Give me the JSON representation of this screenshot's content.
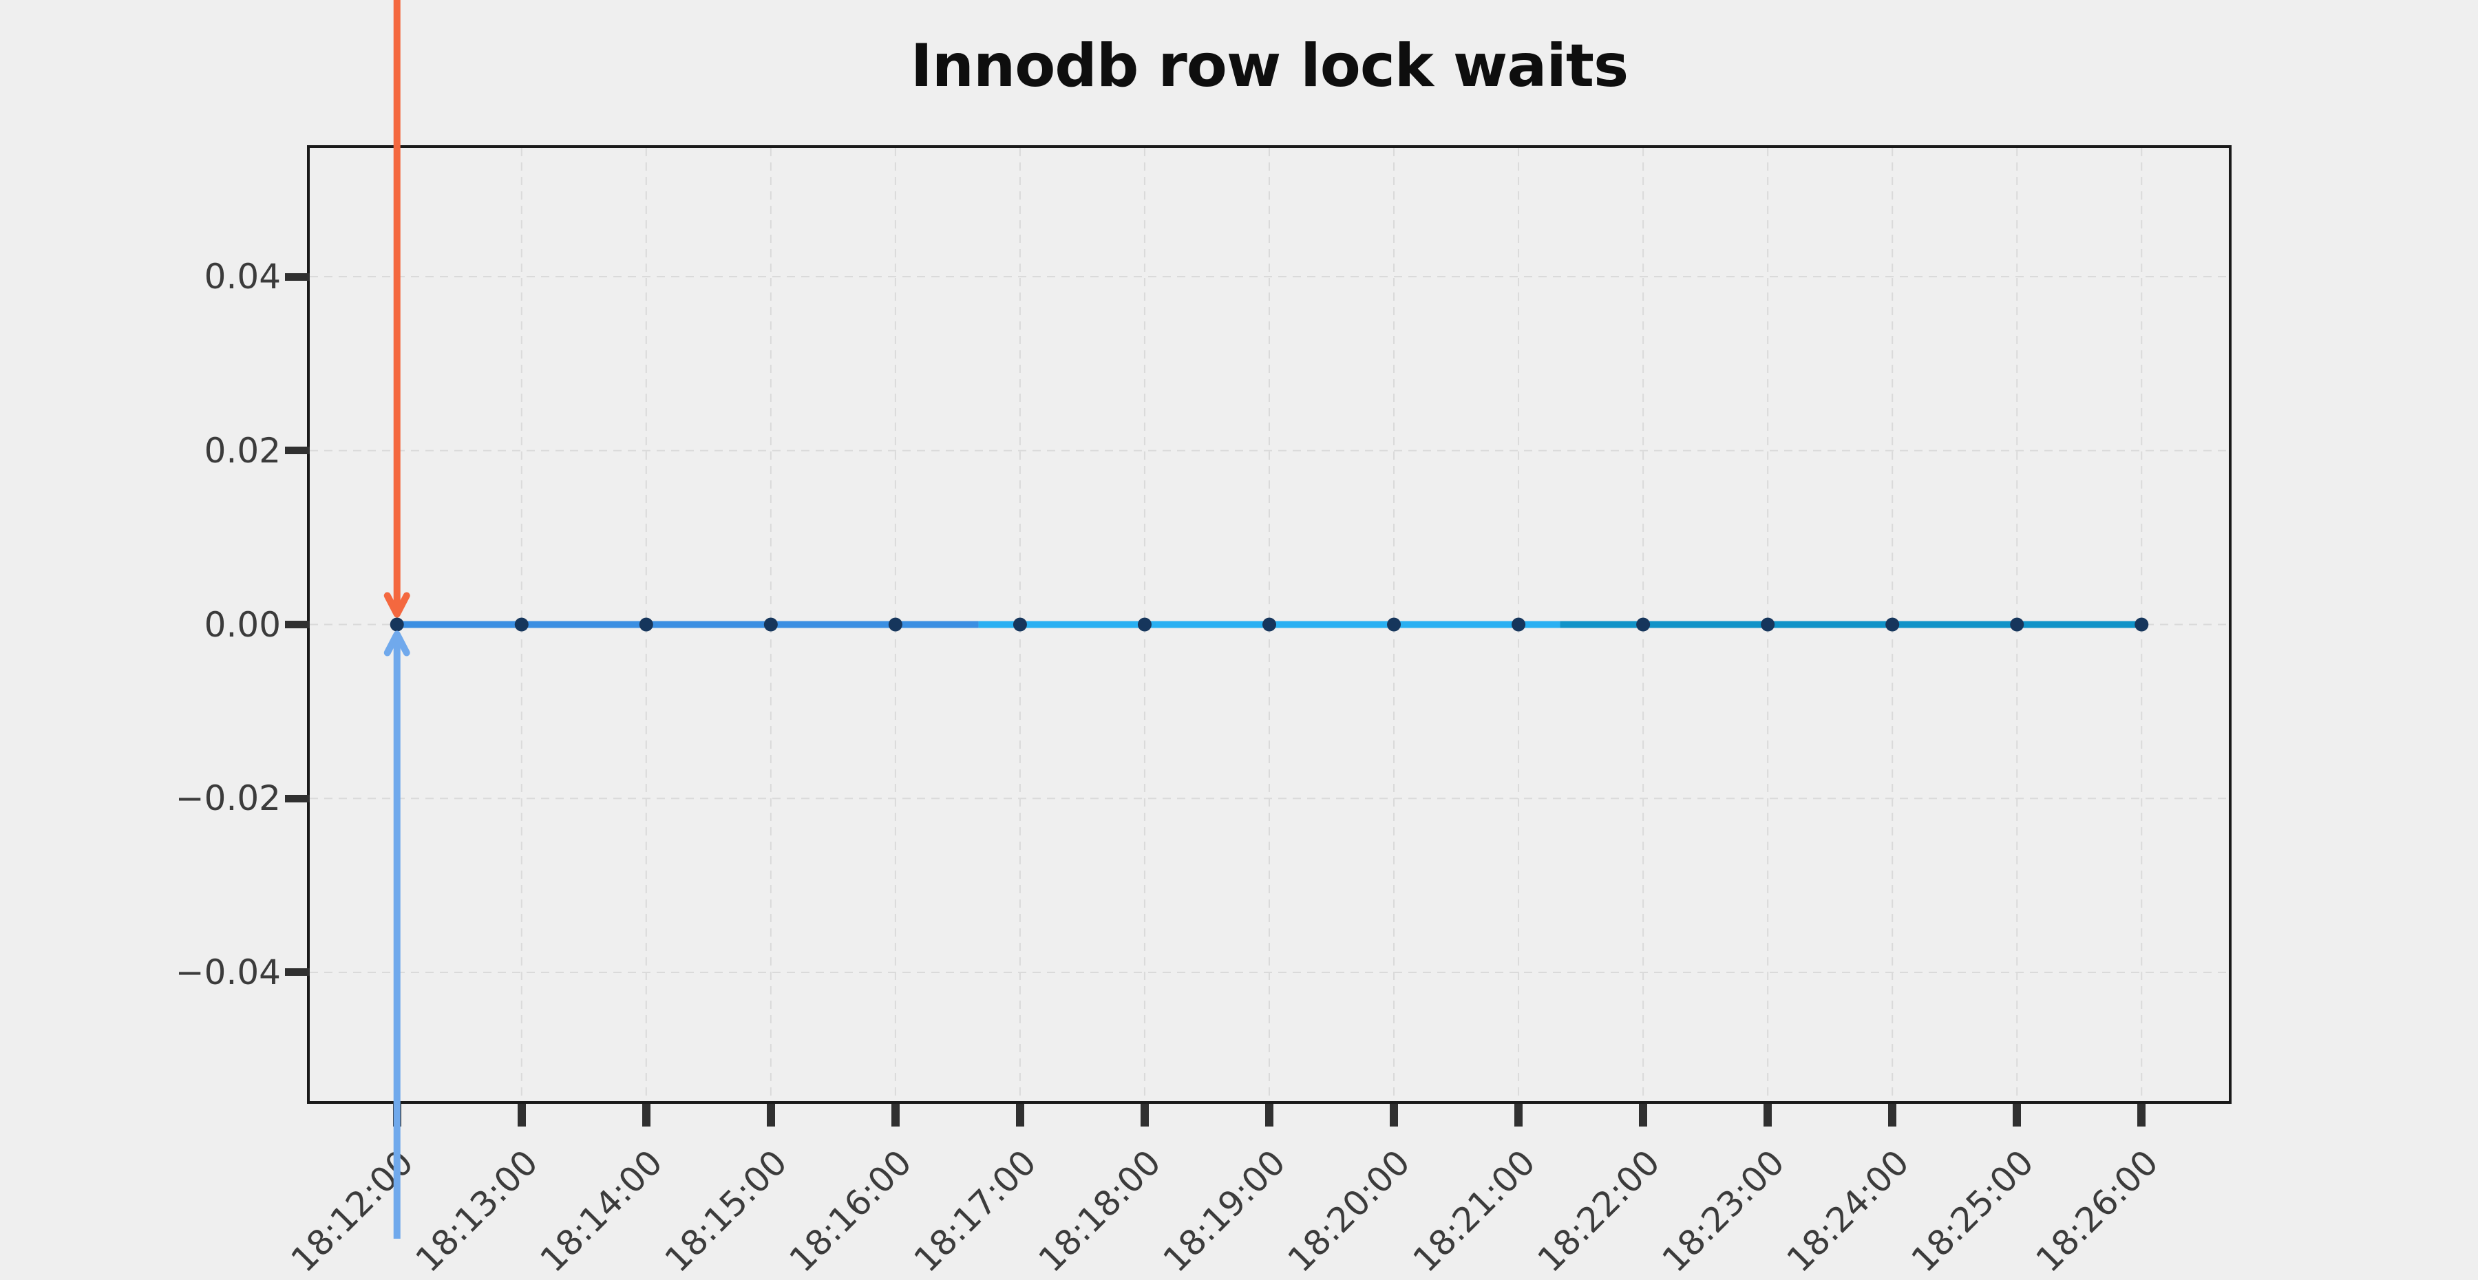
{
  "figure": {
    "background": "#efefef"
  },
  "chart_data": {
    "type": "line",
    "title": "Innodb row lock waits",
    "x": [
      "18:12:00",
      "18:13:00",
      "18:14:00",
      "18:15:00",
      "18:16:00",
      "18:17:00",
      "18:18:00",
      "18:19:00",
      "18:20:00",
      "18:21:00",
      "18:22:00",
      "18:23:00",
      "18:24:00",
      "18:25:00",
      "18:26:00"
    ],
    "values": [
      0,
      0,
      0,
      0,
      0,
      0,
      0,
      0,
      0,
      0,
      0,
      0,
      0,
      0,
      0
    ],
    "xlabel": "",
    "ylabel": "",
    "y_tick_labels": [
      "0.04",
      "0.02",
      "0.00",
      "−0.02",
      "−0.04"
    ],
    "y_tick_values": [
      0.04,
      0.02,
      0,
      -0.02,
      -0.04
    ],
    "ylim": [
      -0.0548,
      0.0548
    ],
    "x_pad_minutes": 0.7,
    "grid": "dashed",
    "legend": "none",
    "marker": {
      "shape": "circle",
      "color": "#16365c",
      "radius": 10
    },
    "line_width": 10,
    "line_segments": [
      {
        "name": "segment-1",
        "color": "#3b8fe2",
        "from": "18:12:00",
        "to": "18:16:40"
      },
      {
        "name": "segment-2",
        "color": "#29b0f2",
        "from": "18:16:40",
        "to": "18:21:20"
      },
      {
        "name": "segment-3",
        "color": "#1093c8",
        "from": "18:21:20",
        "to": "18:26:00"
      }
    ],
    "annotations": [
      {
        "name": "arrow-down",
        "color": "#f4683f",
        "x": "18:12:00",
        "y": 0,
        "direction": "down"
      },
      {
        "name": "arrow-up",
        "color": "#70a9ec",
        "x": "18:12:00",
        "y": 0,
        "direction": "up"
      }
    ],
    "axis_style": {
      "spine_color": "#1a1a1a",
      "tick_color": "#303030",
      "label_color": "#3b3b3b",
      "grid_color": "#dadada",
      "title_color": "#0e0e0e"
    }
  }
}
